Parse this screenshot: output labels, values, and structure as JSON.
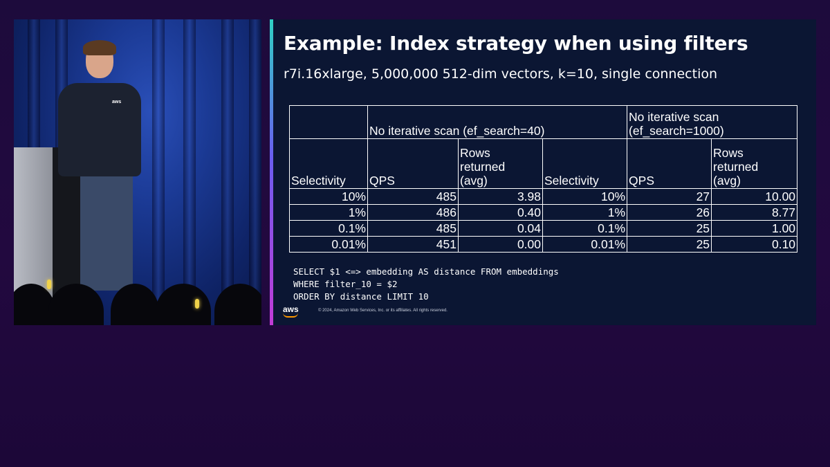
{
  "slide": {
    "title": "Example: Index strategy when using filters",
    "subtitle": "r7i.16xlarge, 5,000,000 512-dim vectors, k=10, single connection",
    "table": {
      "group_headers": [
        "No iterative scan (ef_search=40)",
        "No iterative scan\n(ef_search=1000)"
      ],
      "column_headers": [
        "Selectivity",
        "QPS",
        "Rows\nreturned\n(avg)",
        "Selectivity",
        "QPS",
        "Rows\nreturned\n(avg)"
      ],
      "rows": [
        [
          "10%",
          "485",
          "3.98",
          "10%",
          "27",
          "10.00"
        ],
        [
          "1%",
          "486",
          "0.40",
          "1%",
          "26",
          "8.77"
        ],
        [
          "0.1%",
          "485",
          "0.04",
          "0.1%",
          "25",
          "1.00"
        ],
        [
          "0.01%",
          "451",
          "0.00",
          "0.01%",
          "25",
          "0.10"
        ]
      ]
    },
    "code": "SELECT $1 <=> embedding AS distance FROM embeddings\nWHERE filter_10 = $2\nORDER BY distance LIMIT 10",
    "footer": {
      "logo_text": "aws",
      "copyright": "© 2024, Amazon Web Services, Inc. or its affiliates. All rights reserved."
    }
  },
  "video": {
    "shirt_logo": "aws"
  },
  "colors": {
    "slide_bg": "#0b1633",
    "page_bg": "#1d0b3c",
    "accent_top": "#2fd2c4",
    "accent_bottom": "#c13bd6",
    "aws_orange": "#ff9900"
  }
}
